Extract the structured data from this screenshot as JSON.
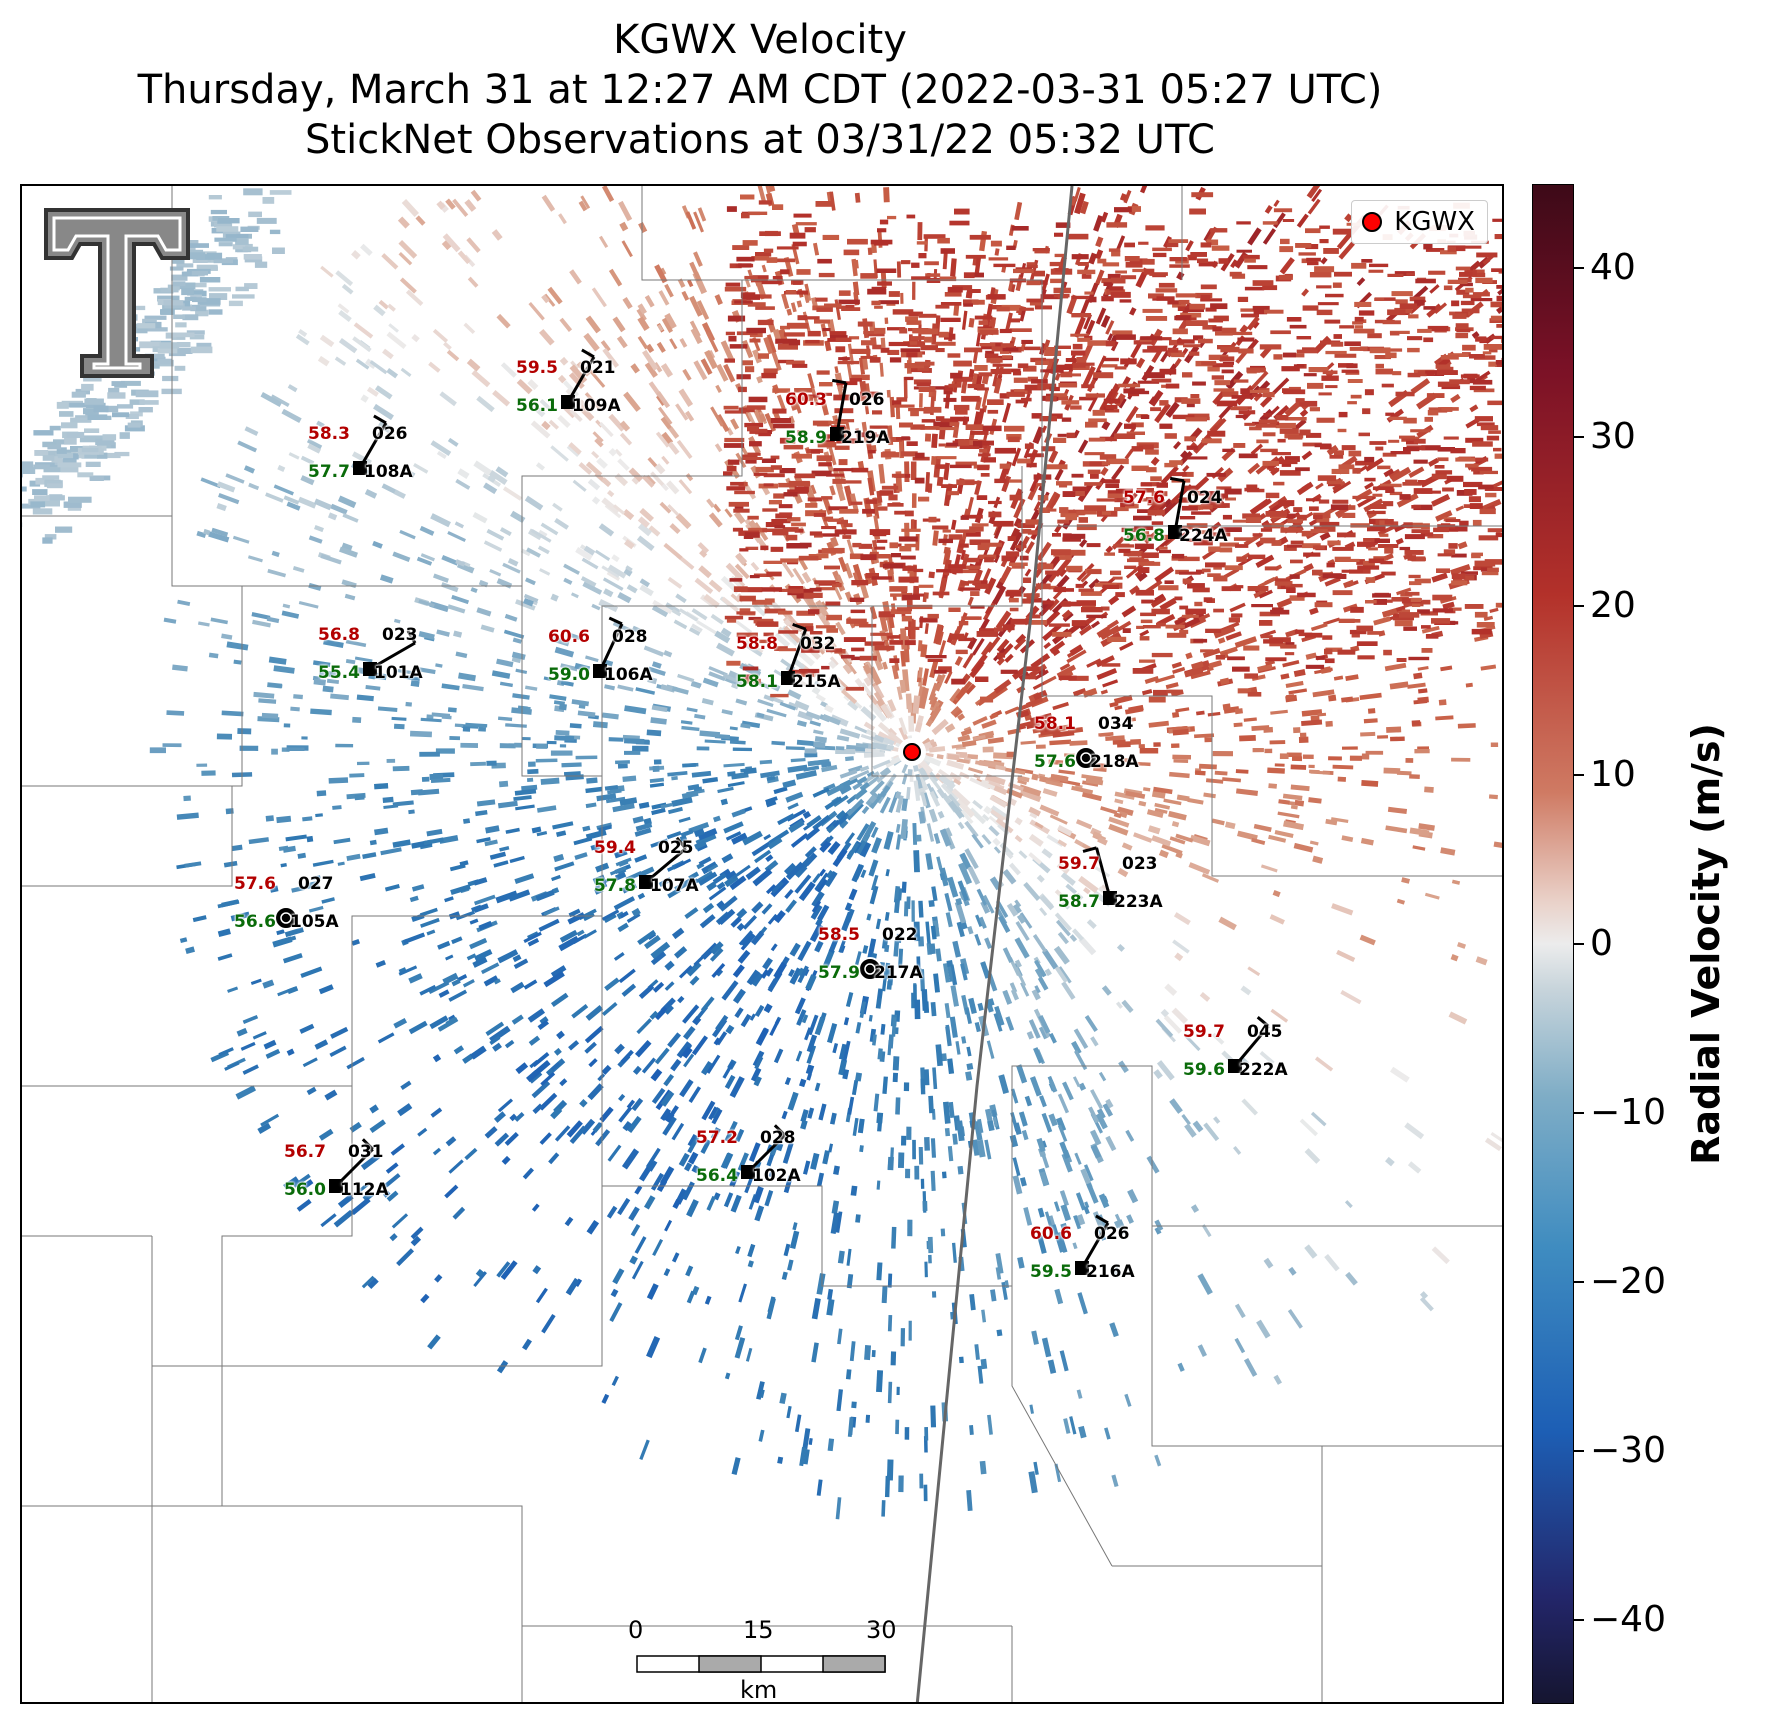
{
  "title": {
    "line1": "KGWX Velocity",
    "line2": "Thursday, March 31 at 12:27 AM CDT (2022-03-31 05:27 UTC)",
    "line3": "StickNet Observations at 03/31/22 05:32 UTC"
  },
  "legend": {
    "label": "KGWX"
  },
  "colorbar": {
    "label": "Radial Velocity (m/s)",
    "ticks": [
      "40",
      "30",
      "20",
      "10",
      "0",
      "−10",
      "−20",
      "−30",
      "−40"
    ],
    "range": [
      -45,
      45
    ],
    "colors": {
      "max": "#3d0a18",
      "positive": "#b3312a",
      "zero": "#ececec",
      "negative": "#1d5fb5",
      "min": "#151530"
    }
  },
  "scalebar": {
    "ticks": [
      "0",
      "15",
      "30"
    ],
    "unit": "km"
  },
  "radar": {
    "name": "KGWX",
    "marker_color": "#ff0000"
  },
  "stations": [
    {
      "id": "109A",
      "temp": "59.5",
      "dew": "56.1",
      "pres": "021"
    },
    {
      "id": "219A",
      "temp": "60.3",
      "dew": "58.9",
      "pres": "026"
    },
    {
      "id": "108A",
      "temp": "58.3",
      "dew": "57.7",
      "pres": "026"
    },
    {
      "id": "224A",
      "temp": "57.6",
      "dew": "56.8",
      "pres": "024"
    },
    {
      "id": "101A",
      "temp": "56.8",
      "dew": "55.4",
      "pres": "023"
    },
    {
      "id": "106A",
      "temp": "60.6",
      "dew": "59.0",
      "pres": "028"
    },
    {
      "id": "215A",
      "temp": "58.8",
      "dew": "58.1",
      "pres": "032"
    },
    {
      "id": "218A",
      "temp": "58.1",
      "dew": "57.6",
      "pres": "034"
    },
    {
      "id": "107A",
      "temp": "59.4",
      "dew": "57.8",
      "pres": "025"
    },
    {
      "id": "223A",
      "temp": "59.7",
      "dew": "58.7",
      "pres": "023"
    },
    {
      "id": "105A",
      "temp": "57.6",
      "dew": "56.6",
      "pres": "027"
    },
    {
      "id": "217A",
      "temp": "58.5",
      "dew": "57.9",
      "pres": "022"
    },
    {
      "id": "222A",
      "temp": "59.7",
      "dew": "59.6",
      "pres": "045"
    },
    {
      "id": "112A",
      "temp": "56.7",
      "dew": "56.0",
      "pres": "031"
    },
    {
      "id": "102A",
      "temp": "57.2",
      "dew": "56.4",
      "pres": "028"
    },
    {
      "id": "216A",
      "temp": "60.6",
      "dew": "59.5",
      "pres": "026"
    }
  ]
}
